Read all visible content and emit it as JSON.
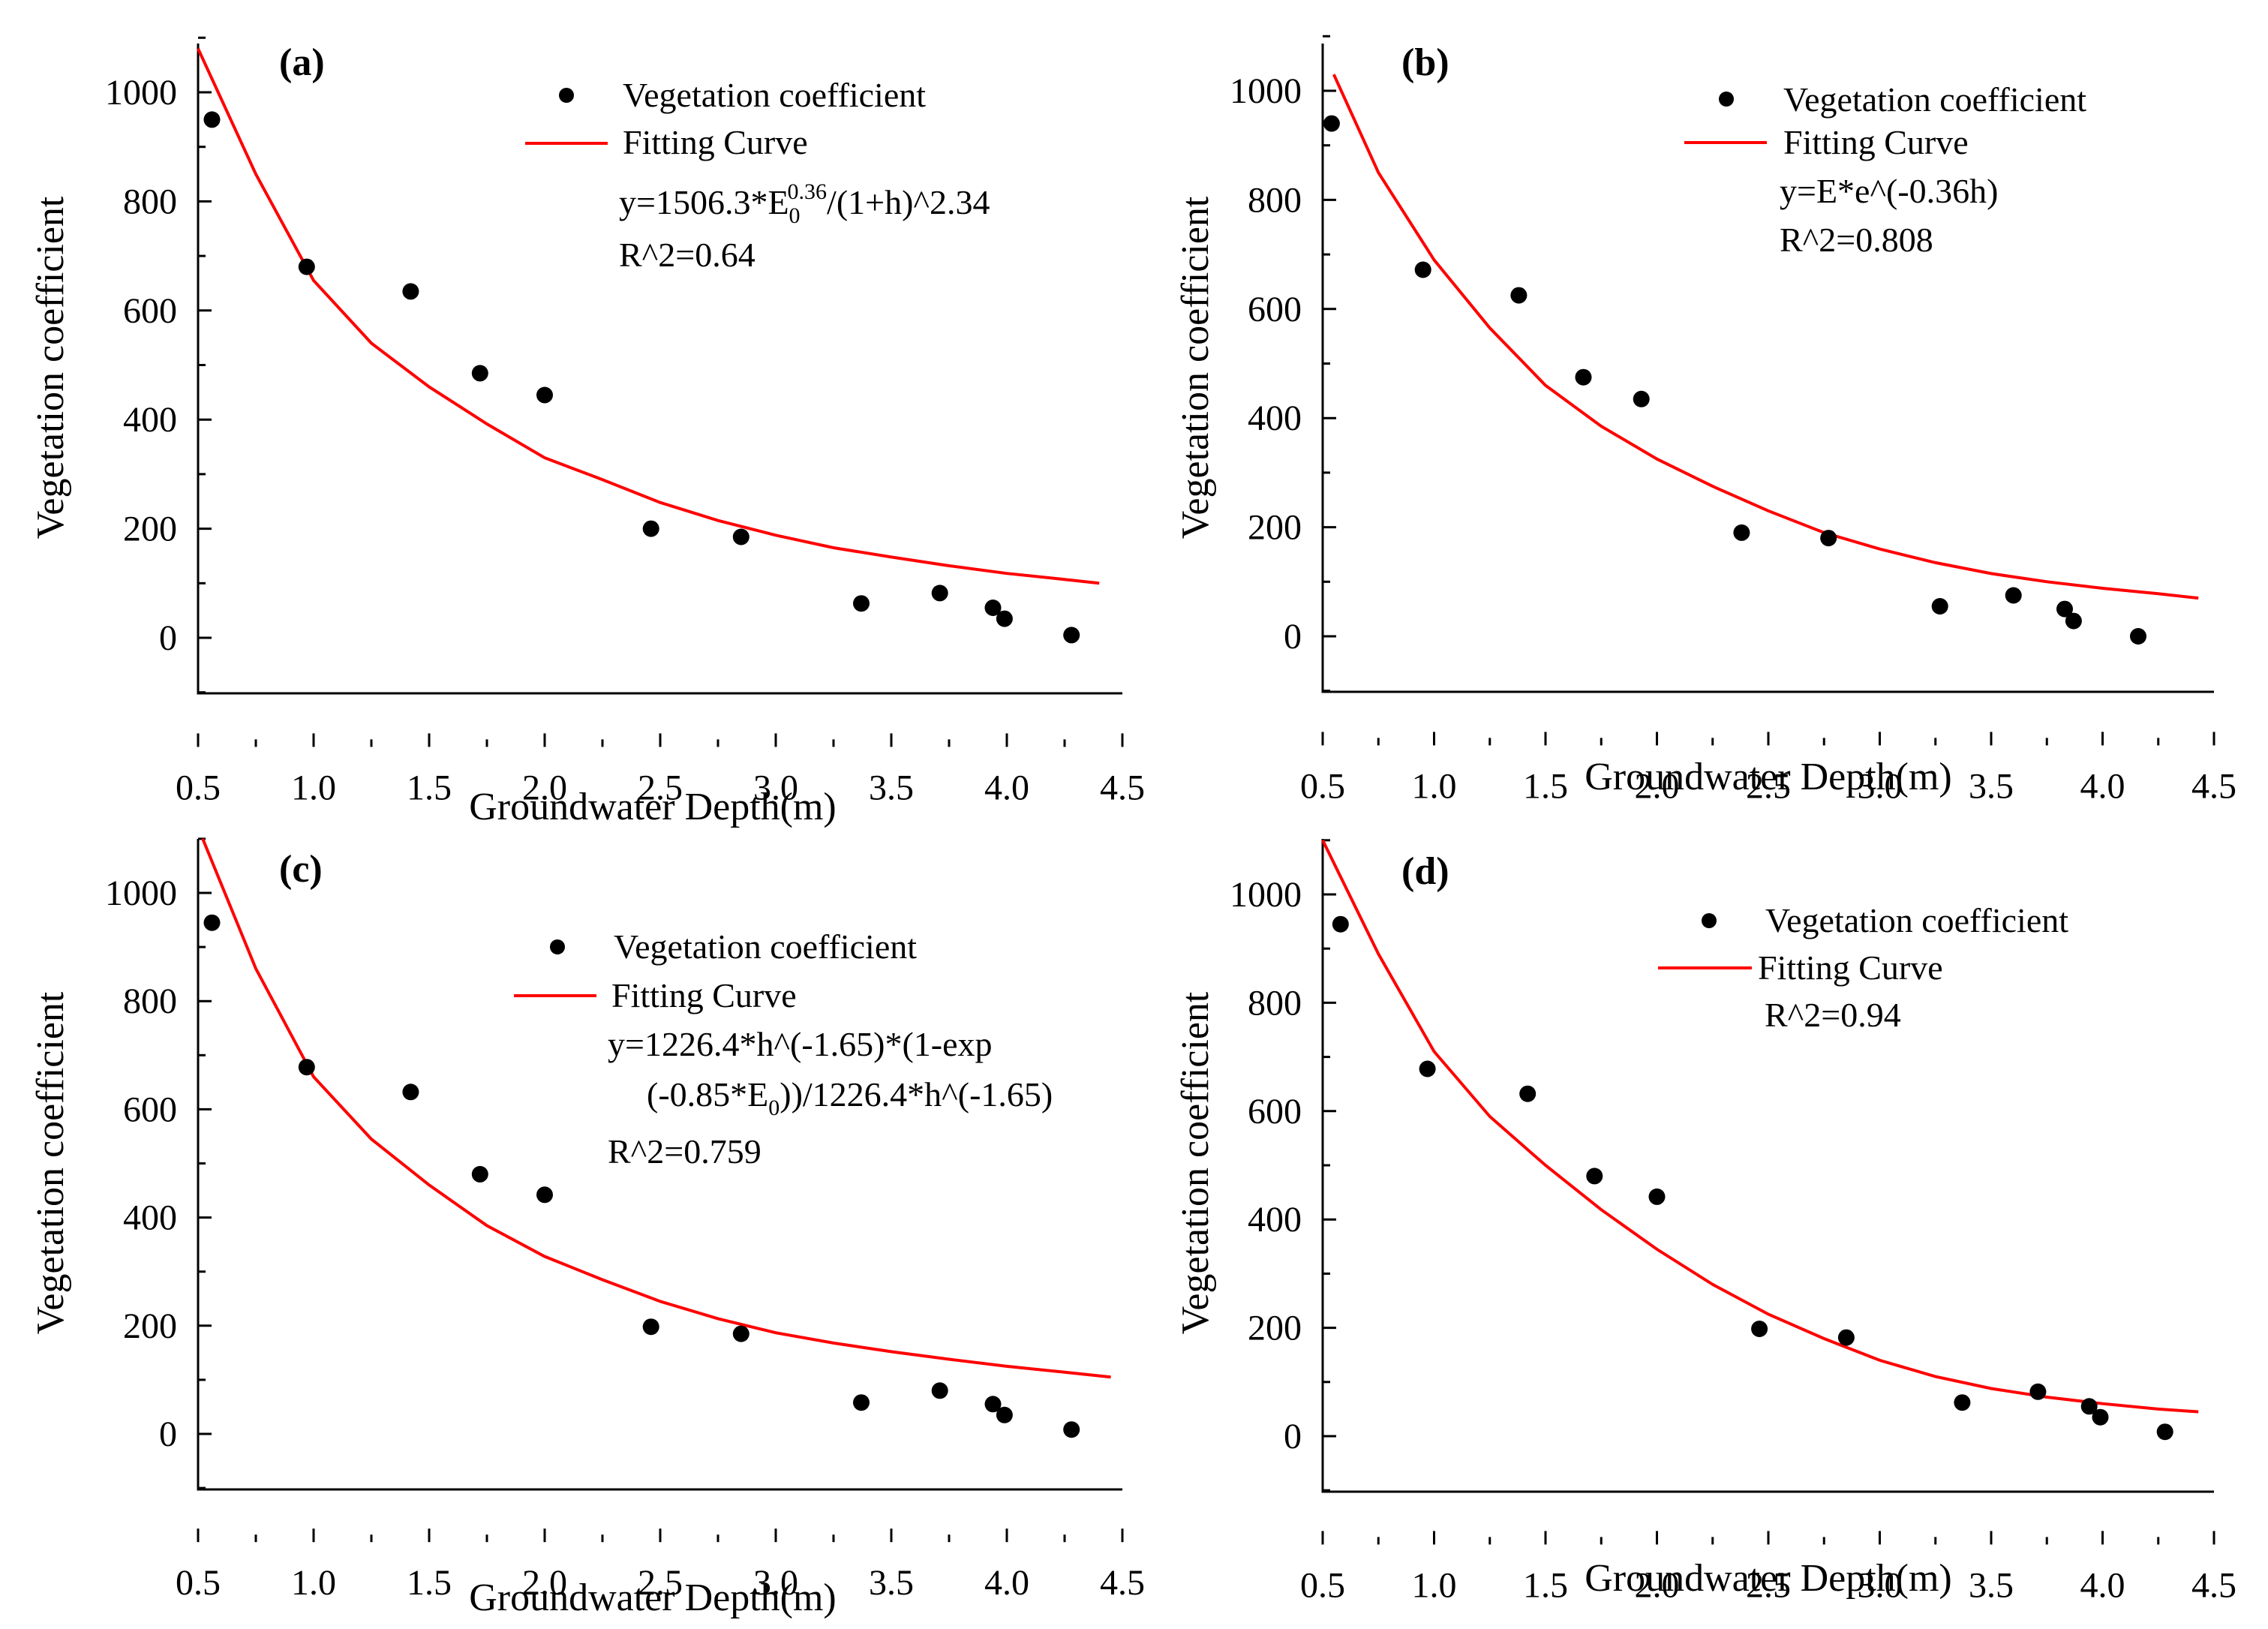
{
  "chart_data": [
    {
      "type": "scatter",
      "panel_label": "(a)",
      "xlabel": "Groundwater Depth(m)",
      "ylabel": "Vegetation coefficient",
      "xlim": [
        0.5,
        4.5
      ],
      "ylim": [
        -100,
        1100
      ],
      "xticks": [
        "0.5",
        "1.0",
        "1.5",
        "2.0",
        "2.5",
        "3.0",
        "3.5",
        "4.0",
        "4.5"
      ],
      "yticks": [
        "0",
        "200",
        "400",
        "600",
        "800",
        "1000"
      ],
      "legend": {
        "points": "Vegetation coefficient",
        "curve": "Fitting Curve"
      },
      "annotations": [
        "y=1506.3*E",
        "0",
        "0.36",
        "/(1+h)^2.34",
        "R^2=0.64"
      ],
      "points": {
        "x": [
          0.56,
          0.97,
          1.42,
          1.72,
          2.0,
          2.46,
          2.85,
          3.37,
          3.71,
          3.94,
          3.99,
          4.28
        ],
        "y": [
          950,
          680,
          635,
          485,
          445,
          200,
          185,
          63,
          82,
          55,
          35,
          5
        ]
      },
      "curve": {
        "x": [
          0.5,
          0.75,
          1.0,
          1.25,
          1.5,
          1.75,
          2.0,
          2.25,
          2.5,
          2.75,
          3.0,
          3.25,
          3.5,
          3.75,
          4.0,
          4.25,
          4.4
        ],
        "y": [
          1080,
          850,
          655,
          540,
          460,
          392,
          330,
          290,
          248,
          215,
          188,
          165,
          148,
          132,
          118,
          107,
          100
        ]
      }
    },
    {
      "type": "scatter",
      "panel_label": "(b)",
      "xlabel": "Groundwater Depth(m)",
      "ylabel": "Vegetation coefficient",
      "xlim": [
        0.5,
        4.5
      ],
      "ylim": [
        -100,
        1100
      ],
      "xticks": [
        "0.5",
        "1.0",
        "1.5",
        "2.0",
        "2.5",
        "3.0",
        "3.5",
        "4.0",
        "4.5"
      ],
      "yticks": [
        "0",
        "200",
        "400",
        "600",
        "800",
        "1000"
      ],
      "legend": {
        "points": "Vegetation coefficient",
        "curve": "Fitting Curve"
      },
      "annotations": [
        "y=E*e^(-0.36h)",
        "R^2=0.808"
      ],
      "points": {
        "x": [
          0.54,
          0.95,
          1.38,
          1.67,
          1.93,
          2.38,
          2.77,
          3.27,
          3.6,
          3.83,
          3.87,
          4.16
        ],
        "y": [
          940,
          672,
          625,
          475,
          435,
          190,
          180,
          55,
          75,
          50,
          28,
          0
        ]
      },
      "curve": {
        "x": [
          0.55,
          0.75,
          1.0,
          1.25,
          1.5,
          1.75,
          2.0,
          2.25,
          2.5,
          2.75,
          3.0,
          3.25,
          3.5,
          3.75,
          4.0,
          4.25,
          4.43
        ],
        "y": [
          1030,
          850,
          690,
          565,
          460,
          385,
          325,
          275,
          230,
          190,
          160,
          135,
          115,
          100,
          88,
          78,
          70
        ]
      }
    },
    {
      "type": "scatter",
      "panel_label": "(c)",
      "xlabel": "Groundwater Depth(m)",
      "ylabel": "Vegetation coefficient",
      "xlim": [
        0.5,
        4.5
      ],
      "ylim": [
        -100,
        1100
      ],
      "xticks": [
        "0.5",
        "1.0",
        "1.5",
        "2.0",
        "2.5",
        "3.0",
        "3.5",
        "4.0",
        "4.5"
      ],
      "yticks": [
        "0",
        "200",
        "400",
        "600",
        "800",
        "1000"
      ],
      "legend": {
        "points": "Vegetation coefficient",
        "curve": "Fitting Curve"
      },
      "annotations": [
        "y=1226.4*h^(-1.65)*(1-exp",
        "(-0.85*E",
        "0",
        "))/1226.4*h^(-1.65)",
        "R^2=0.759"
      ],
      "points": {
        "x": [
          0.56,
          0.97,
          1.42,
          1.72,
          2.0,
          2.46,
          2.85,
          3.37,
          3.71,
          3.94,
          3.99,
          4.28
        ],
        "y": [
          945,
          678,
          632,
          480,
          442,
          198,
          185,
          58,
          80,
          55,
          35,
          8
        ]
      },
      "curve": {
        "x": [
          0.52,
          0.75,
          1.0,
          1.25,
          1.5,
          1.75,
          2.0,
          2.25,
          2.5,
          2.75,
          3.0,
          3.25,
          3.5,
          3.75,
          4.0,
          4.25,
          4.45
        ],
        "y": [
          1100,
          860,
          660,
          545,
          460,
          385,
          328,
          285,
          245,
          213,
          187,
          168,
          152,
          138,
          125,
          114,
          105
        ]
      }
    },
    {
      "type": "scatter",
      "panel_label": "(d)",
      "xlabel": "Groundwater Depth(m)",
      "ylabel": "Vegetation coefficient",
      "xlim": [
        0.5,
        4.5
      ],
      "ylim": [
        -100,
        1100
      ],
      "xticks": [
        "0.5",
        "1.0",
        "1.5",
        "2.0",
        "2.5",
        "3.0",
        "3.5",
        "4.0",
        "4.5"
      ],
      "yticks": [
        "0",
        "200",
        "400",
        "600",
        "800",
        "1000"
      ],
      "legend": {
        "points": "Vegetation coefficient",
        "curve": "Fitting Curve"
      },
      "annotations": [
        "R^2=0.94"
      ],
      "points": {
        "x": [
          0.58,
          0.97,
          1.42,
          1.72,
          2.0,
          2.46,
          2.85,
          3.37,
          3.71,
          3.94,
          3.99,
          4.28
        ],
        "y": [
          945,
          678,
          632,
          480,
          442,
          198,
          182,
          62,
          82,
          55,
          35,
          8
        ]
      },
      "curve": {
        "x": [
          0.5,
          0.75,
          1.0,
          1.25,
          1.5,
          1.75,
          2.0,
          2.25,
          2.5,
          2.75,
          3.0,
          3.25,
          3.5,
          3.75,
          4.0,
          4.25,
          4.43
        ],
        "y": [
          1100,
          890,
          710,
          590,
          500,
          418,
          345,
          280,
          225,
          180,
          140,
          110,
          88,
          72,
          60,
          50,
          45
        ]
      }
    }
  ],
  "colors": {
    "points": "#000000",
    "curve": "#ff0000",
    "axis": "#000000"
  }
}
